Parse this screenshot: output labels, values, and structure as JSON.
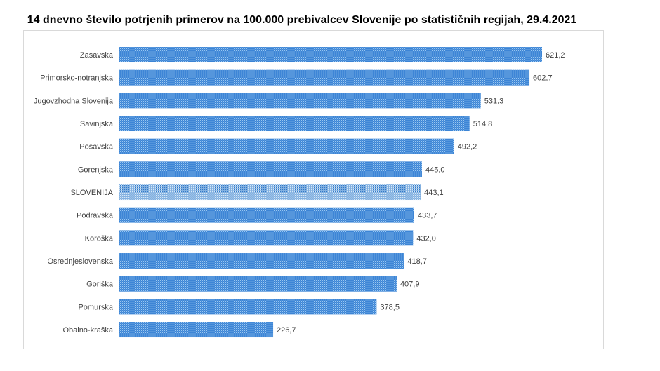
{
  "chart_data": {
    "type": "bar",
    "orientation": "horizontal",
    "title": "14 dnevno število potrjenih primerov na 100.000 prebivalcev Slovenije po statističnih regijah, 29.4.2021",
    "categories": [
      "Zasavska",
      "Primorsko-notranjska",
      "Jugovzhodna Slovenija",
      "Savinjska",
      "Posavska",
      "Gorenjska",
      "SLOVENIJA",
      "Podravska",
      "Koroška",
      "Osrednjeslovenska",
      "Goriška",
      "Pomurska",
      "Obalno-kraška"
    ],
    "values": [
      621.2,
      602.7,
      531.3,
      514.8,
      492.2,
      445.0,
      443.1,
      433.7,
      432.0,
      418.7,
      407.9,
      378.5,
      226.7
    ],
    "value_labels": [
      "621,2",
      "602,7",
      "531,3",
      "514,8",
      "492,2",
      "445,0",
      "443,1",
      "433,7",
      "432,0",
      "418,7",
      "407,9",
      "378,5",
      "226,7"
    ],
    "highlight": "SLOVENIJA",
    "xlim": [
      0,
      621.2
    ],
    "grid": false,
    "colors": {
      "bar": "#3d85d6",
      "bar_dots": "#9cc8f0",
      "highlight_bg": "#d6e8f8",
      "highlight_dots": "#2f78c8"
    }
  }
}
